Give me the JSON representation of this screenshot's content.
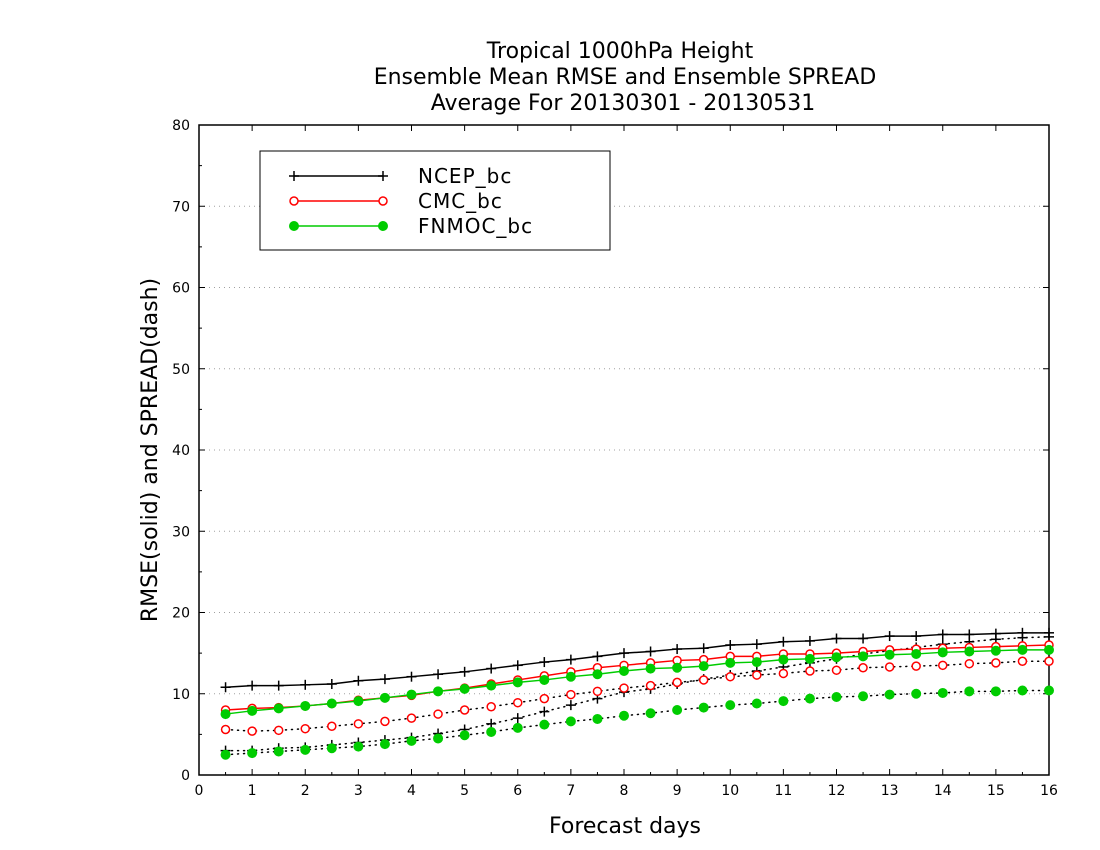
{
  "chart_data": {
    "type": "line",
    "title": [
      "Tropical 1000hPa Height",
      "Ensemble Mean RMSE and Ensemble SPREAD",
      "Average For 20130301 - 20130531"
    ],
    "xlabel": "Forecast days",
    "ylabel": "RMSE(solid) and SPREAD(dash)",
    "xlim": [
      0,
      16
    ],
    "ylim": [
      0,
      80
    ],
    "xticks": [
      0,
      1,
      2,
      3,
      4,
      5,
      6,
      7,
      8,
      9,
      10,
      11,
      12,
      13,
      14,
      15,
      16
    ],
    "xtick_labels": [
      "0",
      "1",
      "2",
      "3",
      "4",
      "5",
      "6",
      "7",
      "8",
      "9",
      "10",
      "11",
      "12",
      "13",
      "14",
      "15",
      "16"
    ],
    "yticks": [
      0,
      10,
      20,
      30,
      40,
      50,
      60,
      70,
      80
    ],
    "ytick_labels": [
      "0",
      "10",
      "20",
      "30",
      "40",
      "50",
      "60",
      "70",
      "80"
    ],
    "grid": "horizontal dotted",
    "legend_position": "top-left",
    "x": [
      0.5,
      1,
      1.5,
      2,
      2.5,
      3,
      3.5,
      4,
      4.5,
      5,
      5.5,
      6,
      6.5,
      7,
      7.5,
      8,
      8.5,
      9,
      9.5,
      10,
      10.5,
      11,
      11.5,
      12,
      12.5,
      13,
      13.5,
      14,
      14.5,
      15,
      15.5,
      16
    ],
    "series": [
      {
        "name": "NCEP_bc",
        "color": "#000000",
        "marker": "plus",
        "rmse": [
          10.8,
          11.0,
          11.0,
          11.1,
          11.2,
          11.6,
          11.8,
          12.1,
          12.4,
          12.7,
          13.1,
          13.5,
          13.9,
          14.2,
          14.6,
          15.0,
          15.2,
          15.5,
          15.6,
          16.0,
          16.1,
          16.4,
          16.5,
          16.8,
          16.8,
          17.1,
          17.1,
          17.3,
          17.3,
          17.4,
          17.5,
          17.5
        ],
        "spread": [
          3.0,
          3.0,
          3.3,
          3.4,
          3.7,
          4.0,
          4.3,
          4.6,
          5.1,
          5.6,
          6.3,
          7.0,
          7.8,
          8.6,
          9.4,
          10.2,
          10.6,
          11.2,
          11.8,
          12.3,
          12.8,
          13.3,
          13.8,
          14.3,
          14.9,
          15.3,
          15.7,
          16.1,
          16.4,
          16.7,
          16.9,
          17.0
        ]
      },
      {
        "name": "CMC_bc",
        "color": "#ff0000",
        "marker": "open-circle",
        "rmse": [
          8.0,
          8.2,
          8.3,
          8.5,
          8.8,
          9.2,
          9.5,
          9.8,
          10.3,
          10.7,
          11.2,
          11.7,
          12.2,
          12.7,
          13.2,
          13.5,
          13.8,
          14.1,
          14.2,
          14.6,
          14.6,
          14.9,
          14.9,
          15.0,
          15.2,
          15.4,
          15.5,
          15.6,
          15.7,
          15.8,
          15.9,
          16.0
        ],
        "spread": [
          5.6,
          5.4,
          5.5,
          5.7,
          6.0,
          6.3,
          6.6,
          7.0,
          7.5,
          8.0,
          8.4,
          8.9,
          9.4,
          9.9,
          10.3,
          10.7,
          11.0,
          11.4,
          11.7,
          12.1,
          12.3,
          12.5,
          12.8,
          12.9,
          13.2,
          13.3,
          13.4,
          13.5,
          13.7,
          13.8,
          14.0,
          14.0
        ]
      },
      {
        "name": "FNMOC_bc",
        "color": "#00cc00",
        "marker": "filled-circle",
        "rmse": [
          7.5,
          7.9,
          8.2,
          8.5,
          8.8,
          9.1,
          9.5,
          9.9,
          10.3,
          10.6,
          11.0,
          11.4,
          11.7,
          12.1,
          12.4,
          12.8,
          13.1,
          13.2,
          13.4,
          13.8,
          13.9,
          14.2,
          14.3,
          14.5,
          14.6,
          14.8,
          14.9,
          15.1,
          15.2,
          15.3,
          15.4,
          15.4
        ],
        "spread": [
          2.5,
          2.7,
          2.9,
          3.1,
          3.3,
          3.5,
          3.8,
          4.2,
          4.5,
          4.9,
          5.3,
          5.8,
          6.2,
          6.6,
          6.9,
          7.3,
          7.6,
          8.0,
          8.3,
          8.6,
          8.8,
          9.1,
          9.4,
          9.6,
          9.7,
          9.9,
          10.0,
          10.1,
          10.3,
          10.3,
          10.4,
          10.4
        ]
      }
    ]
  }
}
